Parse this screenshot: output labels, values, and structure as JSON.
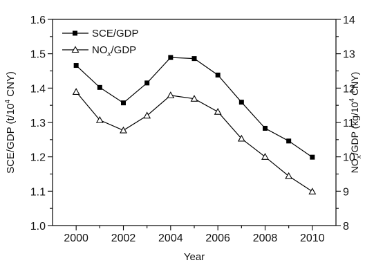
{
  "chart_data": {
    "type": "line",
    "title": "",
    "xlabel": "Year",
    "ylabel_left": {
      "main": "SCE/GDP (t/10",
      "sup": "4",
      "tail": " CNY)"
    },
    "ylabel_right": {
      "pre": "NO",
      "sub": "x",
      "mid": "/GDP (kg/10",
      "sup": "4",
      "tail": " CNY)"
    },
    "x": [
      2000,
      2001,
      2002,
      2003,
      2004,
      2005,
      2006,
      2007,
      2008,
      2009,
      2010
    ],
    "xlim": [
      1999,
      2011
    ],
    "xticks": [
      2000,
      2002,
      2004,
      2006,
      2008,
      2010
    ],
    "ylim_left": [
      1.0,
      1.6
    ],
    "yticks_left": [
      "1.0",
      "1.1",
      "1.2",
      "1.3",
      "1.4",
      "1.5",
      "1.6"
    ],
    "ylim_right": [
      8,
      14
    ],
    "yticks_right": [
      "8",
      "9",
      "10",
      "11",
      "12",
      "13",
      "14"
    ],
    "grid": false,
    "legend_position": "top-left",
    "series": [
      {
        "name": "SCE/GDP",
        "axis": "left",
        "marker": "square-filled",
        "values": [
          1.466,
          1.402,
          1.357,
          1.415,
          1.489,
          1.486,
          1.438,
          1.359,
          1.283,
          1.246,
          1.199
        ]
      },
      {
        "name": "NOx/GDP",
        "legend": {
          "pre": "NO",
          "sub": "x",
          "post": "/GDP"
        },
        "axis": "right",
        "marker": "triangle-open",
        "values": [
          11.89,
          11.07,
          10.77,
          11.2,
          11.79,
          11.69,
          11.31,
          10.53,
          10.0,
          9.44,
          8.99
        ]
      }
    ]
  }
}
